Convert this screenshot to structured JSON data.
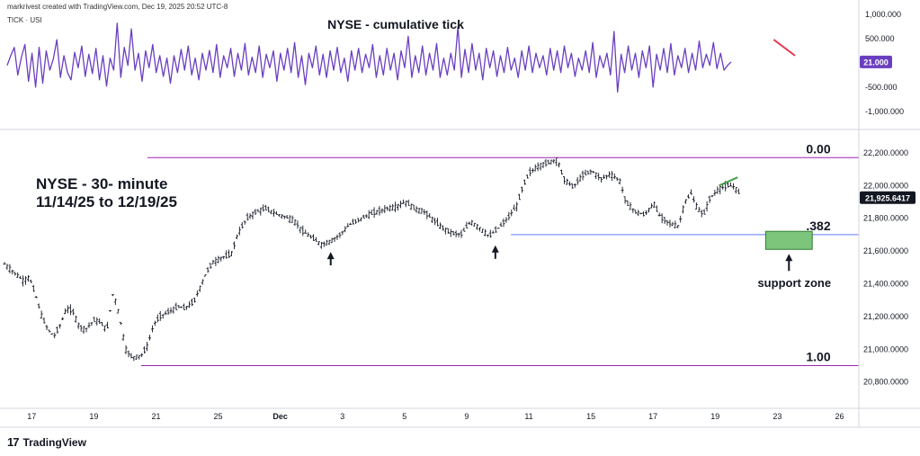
{
  "header": {
    "credit": "markrivest created with TradingView.com, Dec 19, 2025 20:52 UTC-8",
    "indicator_label": "TICK · USI"
  },
  "footer": {
    "logo_glyph": "17",
    "brand": "TradingView"
  },
  "chart_data": [
    {
      "type": "line",
      "title": "NYSE - cumulative tick",
      "series": [
        {
          "name": "",
          "color": "#6a3fbf",
          "values": [
            -50,
            150,
            320,
            -250,
            120,
            380,
            -380,
            200,
            -500,
            320,
            -420,
            250,
            -150,
            80,
            480,
            -300,
            150,
            -200,
            -350,
            220,
            -100,
            350,
            -280,
            180,
            -220,
            300,
            -350,
            150,
            -480,
            100,
            -150,
            820,
            -300,
            320,
            -50,
            700,
            -150,
            200,
            -380,
            250,
            -100,
            380,
            -200,
            150,
            -280,
            100,
            -420,
            150,
            -200,
            280,
            -150,
            350,
            -250,
            100,
            -350,
            200,
            -150,
            260,
            -200,
            380,
            -300,
            150,
            -100,
            300,
            -280,
            200,
            -150,
            400,
            -250,
            120,
            -200,
            350,
            -300,
            180,
            -100,
            250,
            -380,
            200,
            -150,
            300,
            -200,
            420,
            -300,
            150,
            -450,
            200,
            -100,
            350,
            -250,
            180,
            -300,
            250,
            -150,
            320,
            -200,
            100,
            -380,
            250,
            -150,
            300,
            -200,
            180,
            -100,
            380,
            -300,
            150,
            -250,
            300,
            -150,
            200,
            -350,
            250,
            -100,
            550,
            -300,
            150,
            -200,
            350,
            -250,
            200,
            -150,
            400,
            -300,
            100,
            -250,
            200,
            -150,
            750,
            -300,
            280,
            -200,
            400,
            -150,
            200,
            -350,
            300,
            -100,
            250,
            -280,
            150,
            -200,
            320,
            -150,
            100,
            -300,
            250,
            -150,
            350,
            -200,
            200,
            -100,
            150,
            -250,
            300,
            -150,
            250,
            -200,
            350,
            -100,
            200,
            -280,
            100,
            -150,
            250,
            -200,
            420,
            -300,
            150,
            -100,
            200,
            -250,
            650,
            -600,
            180,
            -200,
            350,
            -150,
            200,
            -300,
            250,
            -100,
            350,
            -500,
            180,
            -150,
            300,
            -200,
            400,
            -250,
            150,
            -100,
            300,
            -200,
            200,
            -150,
            450,
            -100,
            180,
            -50,
            420,
            -120,
            200,
            -150,
            -50,
            21
          ],
          "annotation_line": {
            "color": "#e53950",
            "from_index": 216,
            "to_index": 222,
            "from_value": 480,
            "to_value": 150
          }
        }
      ],
      "ylim": [
        -1300,
        1150
      ],
      "y_ticks": [
        "1,000.000",
        "500.000",
        "-500.000",
        "-1,000.000"
      ],
      "y_tick_values": [
        1000,
        500,
        -500,
        -1000
      ],
      "last_value_label": "21.000",
      "last_value": 21,
      "grid": false
    },
    {
      "type": "line",
      "chart_style": "ohlc-bars",
      "title": "NYSE - 30- minute",
      "subtitle": "11/14/25 to 12/19/25",
      "x_ticks": [
        "17",
        "19",
        "21",
        "25",
        "Dec",
        "3",
        "5",
        "9",
        "11",
        "15",
        "17",
        "19",
        "23",
        "26"
      ],
      "x_tick_positions": [
        0.5,
        2.5,
        4.5,
        6.5,
        8.5,
        10.5,
        12.5,
        14.5,
        16.5,
        18.5,
        20.5,
        22.5,
        24.5,
        26.5
      ],
      "xlim": [
        0,
        27.5
      ],
      "ylim": [
        20650,
        22320
      ],
      "y_ticks": [
        "22,200.0000",
        "22,000.0000",
        "21,800.0000",
        "21,600.0000",
        "21,400.0000",
        "21,200.0000",
        "21,000.0000",
        "20,800.0000"
      ],
      "y_tick_values": [
        22200,
        22000,
        21800,
        21600,
        21400,
        21200,
        21000,
        20800
      ],
      "last_value_label": "21,925.6417",
      "last_value": 21925.64,
      "price_path": [
        [
          0.0,
          21520
        ],
        [
          0.3,
          21470
        ],
        [
          0.6,
          21420
        ],
        [
          0.8,
          21440
        ],
        [
          1.0,
          21330
        ],
        [
          1.2,
          21200
        ],
        [
          1.4,
          21120
        ],
        [
          1.6,
          21080
        ],
        [
          1.8,
          21150
        ],
        [
          2.0,
          21250
        ],
        [
          2.2,
          21230
        ],
        [
          2.4,
          21140
        ],
        [
          2.6,
          21120
        ],
        [
          2.9,
          21180
        ],
        [
          3.1,
          21160
        ],
        [
          3.3,
          21120
        ],
        [
          3.5,
          21350
        ],
        [
          3.7,
          21200
        ],
        [
          3.9,
          21000
        ],
        [
          4.1,
          20950
        ],
        [
          4.4,
          20960
        ],
        [
          4.6,
          21020
        ],
        [
          4.8,
          21150
        ],
        [
          5.0,
          21200
        ],
        [
          5.3,
          21230
        ],
        [
          5.6,
          21260
        ],
        [
          5.8,
          21250
        ],
        [
          6.1,
          21290
        ],
        [
          6.3,
          21380
        ],
        [
          6.5,
          21470
        ],
        [
          6.7,
          21530
        ],
        [
          7.0,
          21560
        ],
        [
          7.3,
          21580
        ],
        [
          7.5,
          21700
        ],
        [
          7.8,
          21800
        ],
        [
          8.1,
          21840
        ],
        [
          8.4,
          21860
        ],
        [
          8.7,
          21830
        ],
        [
          9.0,
          21810
        ],
        [
          9.3,
          21790
        ],
        [
          9.6,
          21720
        ],
        [
          9.9,
          21680
        ],
        [
          10.2,
          21640
        ],
        [
          10.5,
          21660
        ],
        [
          10.8,
          21700
        ],
        [
          11.1,
          21760
        ],
        [
          11.4,
          21790
        ],
        [
          11.7,
          21820
        ],
        [
          12.0,
          21840
        ],
        [
          12.3,
          21860
        ],
        [
          12.6,
          21870
        ],
        [
          12.9,
          21900
        ],
        [
          13.2,
          21860
        ],
        [
          13.5,
          21840
        ],
        [
          13.8,
          21790
        ],
        [
          14.1,
          21740
        ],
        [
          14.4,
          21710
        ],
        [
          14.7,
          21700
        ],
        [
          15.0,
          21780
        ],
        [
          15.3,
          21740
        ],
        [
          15.6,
          21690
        ],
        [
          15.9,
          21740
        ],
        [
          16.2,
          21800
        ],
        [
          16.5,
          21880
        ],
        [
          16.7,
          22000
        ],
        [
          16.9,
          22080
        ],
        [
          17.2,
          22120
        ],
        [
          17.5,
          22140
        ],
        [
          17.8,
          22160
        ],
        [
          18.0,
          22040
        ],
        [
          18.3,
          21990
        ],
        [
          18.6,
          22060
        ],
        [
          18.9,
          22090
        ],
        [
          19.2,
          22040
        ],
        [
          19.5,
          22070
        ],
        [
          19.8,
          22030
        ],
        [
          20.0,
          21900
        ],
        [
          20.3,
          21840
        ],
        [
          20.6,
          21820
        ],
        [
          20.9,
          21890
        ],
        [
          21.1,
          21810
        ],
        [
          21.4,
          21770
        ],
        [
          21.7,
          21750
        ],
        [
          21.9,
          21900
        ],
        [
          22.1,
          21950
        ],
        [
          22.3,
          21860
        ],
        [
          22.5,
          21820
        ],
        [
          22.7,
          21920
        ],
        [
          23.0,
          21980
        ],
        [
          23.3,
          22000
        ],
        [
          23.5,
          21990
        ],
        [
          23.7,
          21940
        ]
      ],
      "horizontal_lines": [
        {
          "label": "0.00",
          "value": 22170,
          "color": "#9c27b0",
          "x_start": 4.6
        },
        {
          "label": ".382",
          "value": 21700,
          "color": "#5c7cfa",
          "x_start": 16.3
        },
        {
          "label": "1.00",
          "value": 20900,
          "color": "#9c27b0",
          "x_start": 4.4
        }
      ],
      "support_zone": {
        "label": "support zone",
        "x_start": 24.5,
        "x_end": 26.0,
        "y_low": 21610,
        "y_high": 21720,
        "color": "#7dc57a"
      },
      "up_arrows": [
        {
          "x": 10.5,
          "value": 21600
        },
        {
          "x": 15.8,
          "value": 21640
        }
      ],
      "trend_line": {
        "color": "#43a047",
        "x_start": 23.0,
        "x_end": 23.6,
        "from_value": 22000,
        "to_value": 22050
      },
      "grid": false
    }
  ]
}
